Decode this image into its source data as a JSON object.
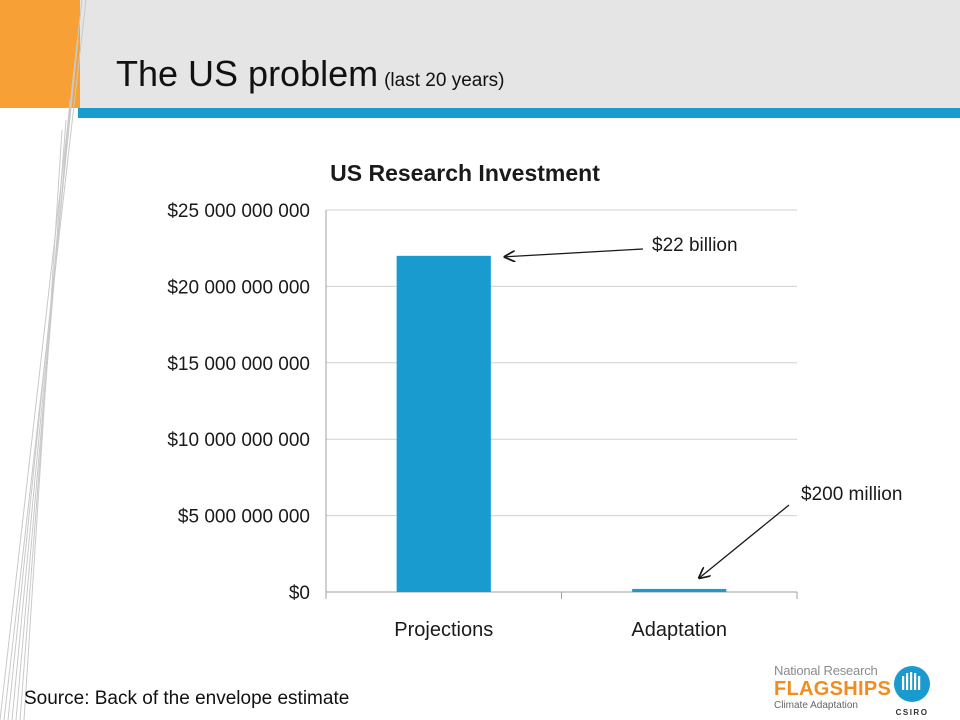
{
  "slide": {
    "title": "The US problem",
    "subtitle": "(last 20 years)",
    "source": "Source: Back of the envelope estimate"
  },
  "logo": {
    "line1": "National Research",
    "line2": "FLAGSHIPS",
    "line3": "Climate Adaptation",
    "org": "CSIRO"
  },
  "colors": {
    "bar": "#1a9bd0",
    "header_band": "#e5e5e6",
    "orange": "#f7a035",
    "blue_rule": "#1a9bd0"
  },
  "chart_data": {
    "type": "bar",
    "title": "US Research Investment",
    "categories": [
      "Projections",
      "Adaptation"
    ],
    "values": [
      22000000000,
      200000000
    ],
    "ylim": [
      0,
      25000000000
    ],
    "yticks": [
      0,
      5000000000,
      10000000000,
      15000000000,
      20000000000,
      25000000000
    ],
    "ytick_labels": [
      "$0",
      "$5 000 000 000",
      "$10 000 000 000",
      "$15 000 000 000",
      "$20 000 000 000",
      "$25 000 000 000"
    ],
    "grid": true,
    "legend": "none",
    "annotations": [
      {
        "text": "$22 billion",
        "category": "Projections"
      },
      {
        "text": "$200 million",
        "category": "Adaptation"
      }
    ]
  }
}
